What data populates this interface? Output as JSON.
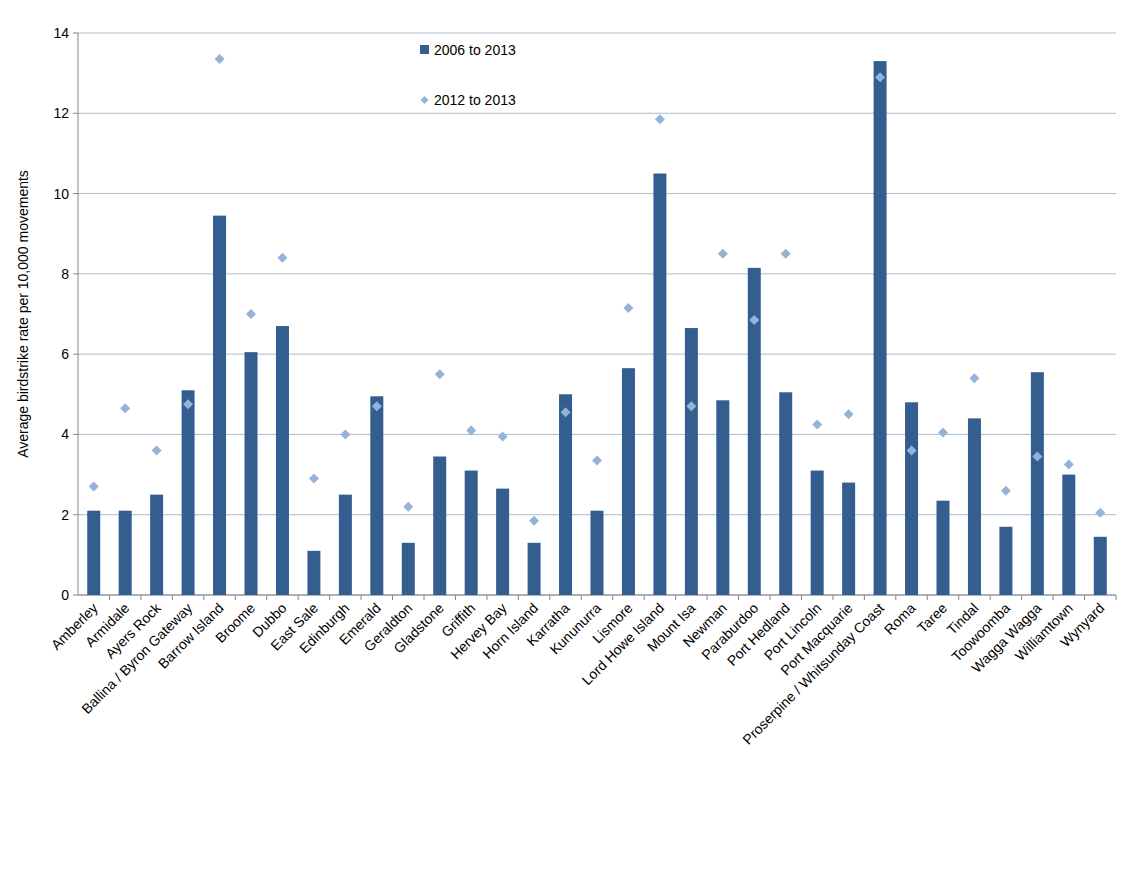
{
  "chart_data": {
    "type": "bar",
    "y_label": "Average birdstrike rate per 10,000 movements",
    "categories": [
      "Amberley",
      "Armidale",
      "Ayers Rock",
      "Ballina / Byron Gateway",
      "Barrow Island",
      "Broome",
      "Dubbo",
      "East Sale",
      "Edinburgh",
      "Emerald",
      "Geraldton",
      "Gladstone",
      "Griffith",
      "Hervey Bay",
      "Horn Island",
      "Karratha",
      "Kununurra",
      "Lismore",
      "Lord Howe Island",
      "Mount Isa",
      "Newman",
      "Paraburdoo",
      "Port Hedland",
      "Port Lincoln",
      "Port Macquarie",
      "Proserpine / Whitsunday Coast",
      "Roma",
      "Taree",
      "Tindal",
      "Toowoomba",
      "Wagga Wagga",
      "Williamtown",
      "Wynyard"
    ],
    "series": [
      {
        "name": "2006 to 2013",
        "type": "bar",
        "color": "#335e8f",
        "values": [
          2.1,
          2.1,
          2.5,
          5.1,
          9.45,
          6.05,
          6.7,
          1.1,
          2.5,
          4.95,
          1.3,
          3.45,
          3.1,
          2.65,
          1.3,
          5.0,
          2.1,
          5.65,
          10.5,
          6.65,
          4.85,
          8.15,
          5.05,
          3.1,
          2.8,
          13.3,
          4.8,
          2.35,
          4.4,
          1.7,
          5.55,
          3.0,
          1.45
        ]
      },
      {
        "name": "2012 to 2013",
        "type": "scatter",
        "marker": "diamond",
        "color": "#95b3d7",
        "values": [
          2.7,
          4.65,
          3.6,
          4.75,
          13.35,
          7.0,
          8.4,
          2.9,
          4.0,
          4.7,
          2.2,
          5.5,
          4.1,
          3.95,
          1.85,
          4.55,
          3.35,
          7.15,
          11.85,
          4.7,
          8.5,
          6.85,
          8.5,
          4.25,
          4.5,
          12.9,
          3.6,
          4.05,
          5.4,
          2.6,
          3.45,
          3.25,
          2.05
        ]
      }
    ],
    "ylim": [
      0,
      14
    ],
    "yticks": [
      0,
      2,
      4,
      6,
      8,
      10,
      12,
      14
    ],
    "grid": true,
    "legend": "top"
  }
}
